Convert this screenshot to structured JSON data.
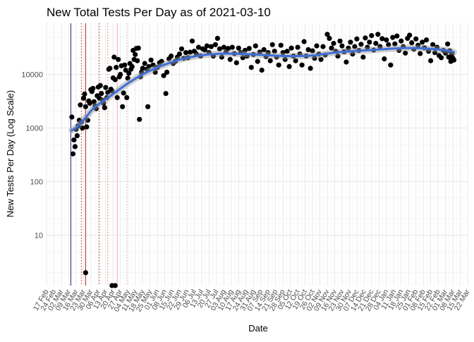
{
  "chart_data": {
    "type": "scatter",
    "title": "New Total Tests Per Day as of 2021-03-10",
    "xlabel": "Date",
    "ylabel": "New Tests Per Day (Log Scale)",
    "y_scale": "log10",
    "ylim": [
      1.15,
      90000
    ],
    "y_ticks": [
      10,
      100,
      1000,
      10000
    ],
    "y_tick_labels": [
      "10",
      "100",
      "1000",
      "10000"
    ],
    "x_start": "2020-02-17",
    "x_end": "2021-03-22",
    "x_ticks": [
      "2020-02-17",
      "2020-02-24",
      "2020-03-02",
      "2020-03-09",
      "2020-03-16",
      "2020-03-23",
      "2020-03-30",
      "2020-04-06",
      "2020-04-13",
      "2020-04-20",
      "2020-04-27",
      "2020-05-04",
      "2020-05-11",
      "2020-05-18",
      "2020-05-25",
      "2020-06-01",
      "2020-06-08",
      "2020-06-15",
      "2020-06-22",
      "2020-06-29",
      "2020-07-06",
      "2020-07-13",
      "2020-07-20",
      "2020-07-27",
      "2020-08-03",
      "2020-08-10",
      "2020-08-17",
      "2020-08-24",
      "2020-08-31",
      "2020-09-07",
      "2020-09-14",
      "2020-09-21",
      "2020-09-28",
      "2020-10-05",
      "2020-10-12",
      "2020-10-19",
      "2020-10-26",
      "2020-11-02",
      "2020-11-09",
      "2020-11-16",
      "2020-11-23",
      "2020-11-30",
      "2020-12-07",
      "2020-12-14",
      "2020-12-21",
      "2020-12-28",
      "2021-01-04",
      "2021-01-11",
      "2021-01-18",
      "2021-01-25",
      "2021-02-01",
      "2021-02-08",
      "2021-02-15",
      "2021-02-22",
      "2021-03-01",
      "2021-03-08",
      "2021-03-15",
      "2021-03-22"
    ],
    "x_tick_labels": [
      "17 Feb",
      "24 Feb",
      "02 Mar",
      "09 Mar",
      "16 Mar",
      "23 Mar",
      "30 Mar",
      "06 Apr",
      "13 Apr",
      "20 Apr",
      "27 Apr",
      "04 May",
      "11 May",
      "18 May",
      "25 May",
      "01 Jun",
      "08 Jun",
      "15 Jun",
      "22 Jun",
      "29 Jun",
      "06 Jul",
      "13 Jul",
      "20 Jul",
      "27 Jul",
      "03 Aug",
      "10 Aug",
      "17 Aug",
      "24 Aug",
      "31 Aug",
      "07 Sep",
      "14 Sep",
      "21 Sep",
      "28 Sep",
      "05 Oct",
      "12 Oct",
      "19 Oct",
      "26 Oct",
      "02 Nov",
      "09 Nov",
      "16 Nov",
      "23 Nov",
      "30 Nov",
      "07 Dec",
      "14 Dec",
      "21 Dec",
      "28 Dec",
      "04 Jan",
      "11 Jan",
      "18 Jan",
      "25 Jan",
      "01 Feb",
      "08 Feb",
      "15 Feb",
      "22 Feb",
      "01 Mar",
      "08 Mar",
      "15 Mar",
      "22 Mar"
    ],
    "grid": true,
    "vlines": [
      {
        "date": "2020-03-11",
        "color": "#1c1c7a",
        "style": "solid"
      },
      {
        "date": "2020-03-21",
        "color": "#b02020",
        "style": "dotted"
      },
      {
        "date": "2020-03-25",
        "color": "#b02020",
        "style": "solid"
      },
      {
        "date": "2020-04-07",
        "color": "#b02020",
        "style": "dotted"
      },
      {
        "date": "2020-04-15",
        "color": "#ff6666",
        "style": "dotted"
      },
      {
        "date": "2020-04-24",
        "color": "#ffb0b0",
        "style": "solid"
      },
      {
        "date": "2020-05-03",
        "color": "#bbbbbb",
        "style": "dotted"
      }
    ],
    "smooth_series": {
      "color": "#3d6fd6",
      "band_color": "#9a9a9a",
      "points": [
        {
          "x": "2020-03-12",
          "y": 900
        },
        {
          "x": "2020-03-19",
          "y": 1150
        },
        {
          "x": "2020-03-26",
          "y": 1650
        },
        {
          "x": "2020-04-02",
          "y": 2400
        },
        {
          "x": "2020-04-12",
          "y": 3300
        },
        {
          "x": "2020-04-22",
          "y": 4600
        },
        {
          "x": "2020-05-05",
          "y": 7000
        },
        {
          "x": "2020-05-20",
          "y": 10500
        },
        {
          "x": "2020-06-05",
          "y": 14500
        },
        {
          "x": "2020-06-25",
          "y": 19500
        },
        {
          "x": "2020-07-15",
          "y": 23000
        },
        {
          "x": "2020-08-05",
          "y": 24500
        },
        {
          "x": "2020-09-01",
          "y": 23500
        },
        {
          "x": "2020-10-01",
          "y": 22000
        },
        {
          "x": "2020-10-25",
          "y": 22500
        },
        {
          "x": "2020-11-20",
          "y": 26000
        },
        {
          "x": "2020-12-20",
          "y": 28500
        },
        {
          "x": "2021-01-20",
          "y": 31000
        },
        {
          "x": "2021-02-10",
          "y": 30500
        },
        {
          "x": "2021-02-28",
          "y": 28500
        },
        {
          "x": "2021-03-09",
          "y": 26000
        }
      ]
    },
    "points": [
      {
        "x": "2020-03-12",
        "y": 1600
      },
      {
        "x": "2020-03-13",
        "y": 330
      },
      {
        "x": "2020-03-14",
        "y": 600
      },
      {
        "x": "2020-03-15",
        "y": 450
      },
      {
        "x": "2020-03-16",
        "y": 950
      },
      {
        "x": "2020-03-17",
        "y": 720
      },
      {
        "x": "2020-03-18",
        "y": 1100
      },
      {
        "x": "2020-03-19",
        "y": 1400
      },
      {
        "x": "2020-03-20",
        "y": 2700
      },
      {
        "x": "2020-03-21",
        "y": 1300
      },
      {
        "x": "2020-03-22",
        "y": 1000
      },
      {
        "x": "2020-03-23",
        "y": 3600
      },
      {
        "x": "2020-03-24",
        "y": 4300
      },
      {
        "x": "2020-03-25",
        "y": 2500
      },
      {
        "x": "2020-03-26",
        "y": 1050
      },
      {
        "x": "2020-03-27",
        "y": 1400
      },
      {
        "x": "2020-03-28",
        "y": 3200
      },
      {
        "x": "2020-03-29",
        "y": 2900
      },
      {
        "x": "2020-03-30",
        "y": 5200
      },
      {
        "x": "2020-03-31",
        "y": 4800
      },
      {
        "x": "2020-04-01",
        "y": 5500
      },
      {
        "x": "2020-04-02",
        "y": 3100
      },
      {
        "x": "2020-04-03",
        "y": 2600
      },
      {
        "x": "2020-04-04",
        "y": 2300
      },
      {
        "x": "2020-04-05",
        "y": 4000
      },
      {
        "x": "2020-04-06",
        "y": 5800
      },
      {
        "x": "2020-04-07",
        "y": 3600
      },
      {
        "x": "2020-04-08",
        "y": 6200
      },
      {
        "x": "2020-04-09",
        "y": 4400
      },
      {
        "x": "2020-04-10",
        "y": 3300
      },
      {
        "x": "2020-04-11",
        "y": 2900
      },
      {
        "x": "2020-04-12",
        "y": 2400
      },
      {
        "x": "2020-04-13",
        "y": 5700
      },
      {
        "x": "2020-04-14",
        "y": 3700
      },
      {
        "x": "2020-04-15",
        "y": 4600
      },
      {
        "x": "2020-04-16",
        "y": 12500
      },
      {
        "x": "2020-04-17",
        "y": 13000
      },
      {
        "x": "2020-04-18",
        "y": 5300
      },
      {
        "x": "2020-04-19",
        "y": 4900
      },
      {
        "x": "2020-04-20",
        "y": 8600
      },
      {
        "x": "2020-04-21",
        "y": 21000
      },
      {
        "x": "2020-04-22",
        "y": 8000
      },
      {
        "x": "2020-04-23",
        "y": 13500
      },
      {
        "x": "2020-04-24",
        "y": 3700
      },
      {
        "x": "2020-04-25",
        "y": 19000
      },
      {
        "x": "2020-04-26",
        "y": 9000
      },
      {
        "x": "2020-04-27",
        "y": 10000
      },
      {
        "x": "2020-04-28",
        "y": 14500
      },
      {
        "x": "2020-04-29",
        "y": 2500
      },
      {
        "x": "2020-04-30",
        "y": 4500
      },
      {
        "x": "2020-05-01",
        "y": 15000
      },
      {
        "x": "2020-05-02",
        "y": 12000
      },
      {
        "x": "2020-05-03",
        "y": 3700
      },
      {
        "x": "2020-05-04",
        "y": 8500
      },
      {
        "x": "2020-05-05",
        "y": 10500
      },
      {
        "x": "2020-05-06",
        "y": 16000
      },
      {
        "x": "2020-05-07",
        "y": 12500
      },
      {
        "x": "2020-05-08",
        "y": 14000
      },
      {
        "x": "2020-05-09",
        "y": 28000
      },
      {
        "x": "2020-05-10",
        "y": 19000
      },
      {
        "x": "2020-05-11",
        "y": 23500
      },
      {
        "x": "2020-05-12",
        "y": 30500
      },
      {
        "x": "2020-05-13",
        "y": 18000
      },
      {
        "x": "2020-05-14",
        "y": 31000
      },
      {
        "x": "2020-05-15",
        "y": 1450
      },
      {
        "x": "2020-05-16",
        "y": 9000
      },
      {
        "x": "2020-05-17",
        "y": 11000
      },
      {
        "x": "2020-05-18",
        "y": 13000
      },
      {
        "x": "2020-05-20",
        "y": 16000
      },
      {
        "x": "2020-05-22",
        "y": 12500
      },
      {
        "x": "2020-05-23",
        "y": 2500
      },
      {
        "x": "2020-05-24",
        "y": 14000
      },
      {
        "x": "2020-05-26",
        "y": 18500
      },
      {
        "x": "2020-05-28",
        "y": 15000
      },
      {
        "x": "2020-05-30",
        "y": 11000
      },
      {
        "x": "2020-06-01",
        "y": 13500
      },
      {
        "x": "2020-06-03",
        "y": 16500
      },
      {
        "x": "2020-06-05",
        "y": 17500
      },
      {
        "x": "2020-06-07",
        "y": 9500
      },
      {
        "x": "2020-06-09",
        "y": 4400
      },
      {
        "x": "2020-06-10",
        "y": 11000
      },
      {
        "x": "2020-06-12",
        "y": 19500
      },
      {
        "x": "2020-06-14",
        "y": 22000
      },
      {
        "x": "2020-06-16",
        "y": 16000
      },
      {
        "x": "2020-06-18",
        "y": 17500
      },
      {
        "x": "2020-06-20",
        "y": 21000
      },
      {
        "x": "2020-06-22",
        "y": 24000
      },
      {
        "x": "2020-06-24",
        "y": 30000
      },
      {
        "x": "2020-06-26",
        "y": 20000
      },
      {
        "x": "2020-06-28",
        "y": 25500
      },
      {
        "x": "2020-06-30",
        "y": 20500
      },
      {
        "x": "2020-07-02",
        "y": 26000
      },
      {
        "x": "2020-07-04",
        "y": 42000
      },
      {
        "x": "2020-07-06",
        "y": 27000
      },
      {
        "x": "2020-07-08",
        "y": 24000
      },
      {
        "x": "2020-07-10",
        "y": 32000
      },
      {
        "x": "2020-07-12",
        "y": 22000
      },
      {
        "x": "2020-07-14",
        "y": 30000
      },
      {
        "x": "2020-07-16",
        "y": 28500
      },
      {
        "x": "2020-07-18",
        "y": 34000
      },
      {
        "x": "2020-07-20",
        "y": 25500
      },
      {
        "x": "2020-07-22",
        "y": 33000
      },
      {
        "x": "2020-07-24",
        "y": 22000
      },
      {
        "x": "2020-07-26",
        "y": 36000
      },
      {
        "x": "2020-07-28",
        "y": 47000
      },
      {
        "x": "2020-07-30",
        "y": 30000
      },
      {
        "x": "2020-08-01",
        "y": 21000
      },
      {
        "x": "2020-08-03",
        "y": 32000
      },
      {
        "x": "2020-08-05",
        "y": 26000
      },
      {
        "x": "2020-08-07",
        "y": 30500
      },
      {
        "x": "2020-08-09",
        "y": 19000
      },
      {
        "x": "2020-08-11",
        "y": 32000
      },
      {
        "x": "2020-08-13",
        "y": 24500
      },
      {
        "x": "2020-08-15",
        "y": 16500
      },
      {
        "x": "2020-08-17",
        "y": 31000
      },
      {
        "x": "2020-08-19",
        "y": 25500
      },
      {
        "x": "2020-08-21",
        "y": 20500
      },
      {
        "x": "2020-08-23",
        "y": 28000
      },
      {
        "x": "2020-08-25",
        "y": 22000
      },
      {
        "x": "2020-08-27",
        "y": 30500
      },
      {
        "x": "2020-08-29",
        "y": 13500
      },
      {
        "x": "2020-08-31",
        "y": 23500
      },
      {
        "x": "2020-09-02",
        "y": 34000
      },
      {
        "x": "2020-09-04",
        "y": 17500
      },
      {
        "x": "2020-09-06",
        "y": 26000
      },
      {
        "x": "2020-09-08",
        "y": 12000
      },
      {
        "x": "2020-09-10",
        "y": 29000
      },
      {
        "x": "2020-09-12",
        "y": 21500
      },
      {
        "x": "2020-09-14",
        "y": 25500
      },
      {
        "x": "2020-09-16",
        "y": 18000
      },
      {
        "x": "2020-09-18",
        "y": 36000
      },
      {
        "x": "2020-09-20",
        "y": 27000
      },
      {
        "x": "2020-09-22",
        "y": 21000
      },
      {
        "x": "2020-09-24",
        "y": 15000
      },
      {
        "x": "2020-09-26",
        "y": 35000
      },
      {
        "x": "2020-09-28",
        "y": 25500
      },
      {
        "x": "2020-09-30",
        "y": 19000
      },
      {
        "x": "2020-10-02",
        "y": 27000
      },
      {
        "x": "2020-10-04",
        "y": 14000
      },
      {
        "x": "2020-10-06",
        "y": 31000
      },
      {
        "x": "2020-10-08",
        "y": 22000
      },
      {
        "x": "2020-10-10",
        "y": 18000
      },
      {
        "x": "2020-10-12",
        "y": 32000
      },
      {
        "x": "2020-10-14",
        "y": 24000
      },
      {
        "x": "2020-10-16",
        "y": 15000
      },
      {
        "x": "2020-10-18",
        "y": 41000
      },
      {
        "x": "2020-10-20",
        "y": 22000
      },
      {
        "x": "2020-10-22",
        "y": 29000
      },
      {
        "x": "2020-10-24",
        "y": 13000
      },
      {
        "x": "2020-10-26",
        "y": 27500
      },
      {
        "x": "2020-10-28",
        "y": 20000
      },
      {
        "x": "2020-10-30",
        "y": 34000
      },
      {
        "x": "2020-11-01",
        "y": 24000
      },
      {
        "x": "2020-11-03",
        "y": 19000
      },
      {
        "x": "2020-11-05",
        "y": 33000
      },
      {
        "x": "2020-11-07",
        "y": 23000
      },
      {
        "x": "2020-11-09",
        "y": 56000
      },
      {
        "x": "2020-11-11",
        "y": 47000
      },
      {
        "x": "2020-11-13",
        "y": 31000
      },
      {
        "x": "2020-11-15",
        "y": 38000
      },
      {
        "x": "2020-11-17",
        "y": 27000
      },
      {
        "x": "2020-11-19",
        "y": 22000
      },
      {
        "x": "2020-11-21",
        "y": 42000
      },
      {
        "x": "2020-11-23",
        "y": 34000
      },
      {
        "x": "2020-11-25",
        "y": 26500
      },
      {
        "x": "2020-11-27",
        "y": 17000
      },
      {
        "x": "2020-11-29",
        "y": 31000
      },
      {
        "x": "2020-12-01",
        "y": 40000
      },
      {
        "x": "2020-12-03",
        "y": 24000
      },
      {
        "x": "2020-12-05",
        "y": 33000
      },
      {
        "x": "2020-12-07",
        "y": 46000
      },
      {
        "x": "2020-12-09",
        "y": 28000
      },
      {
        "x": "2020-12-11",
        "y": 36500
      },
      {
        "x": "2020-12-13",
        "y": 21000
      },
      {
        "x": "2020-12-15",
        "y": 48000
      },
      {
        "x": "2020-12-17",
        "y": 32000
      },
      {
        "x": "2020-12-19",
        "y": 40000
      },
      {
        "x": "2020-12-21",
        "y": 53000
      },
      {
        "x": "2020-12-23",
        "y": 28500
      },
      {
        "x": "2020-12-25",
        "y": 38000
      },
      {
        "x": "2020-12-27",
        "y": 56000
      },
      {
        "x": "2020-12-29",
        "y": 33000
      },
      {
        "x": "2020-12-31",
        "y": 46500
      },
      {
        "x": "2021-01-02",
        "y": 19500
      },
      {
        "x": "2021-01-04",
        "y": 44000
      },
      {
        "x": "2021-01-06",
        "y": 36000
      },
      {
        "x": "2021-01-08",
        "y": 15000
      },
      {
        "x": "2021-01-10",
        "y": 49000
      },
      {
        "x": "2021-01-12",
        "y": 37000
      },
      {
        "x": "2021-01-14",
        "y": 52000
      },
      {
        "x": "2021-01-16",
        "y": 28000
      },
      {
        "x": "2021-01-18",
        "y": 42000
      },
      {
        "x": "2021-01-20",
        "y": 33000
      },
      {
        "x": "2021-01-22",
        "y": 25000
      },
      {
        "x": "2021-01-24",
        "y": 47000
      },
      {
        "x": "2021-01-26",
        "y": 54000
      },
      {
        "x": "2021-01-28",
        "y": 39000
      },
      {
        "x": "2021-01-30",
        "y": 29500
      },
      {
        "x": "2021-02-01",
        "y": 46000
      },
      {
        "x": "2021-02-03",
        "y": 35000
      },
      {
        "x": "2021-02-05",
        "y": 24500
      },
      {
        "x": "2021-02-07",
        "y": 40000
      },
      {
        "x": "2021-02-09",
        "y": 31500
      },
      {
        "x": "2021-02-11",
        "y": 44000
      },
      {
        "x": "2021-02-13",
        "y": 27000
      },
      {
        "x": "2021-02-15",
        "y": 18000
      },
      {
        "x": "2021-02-17",
        "y": 36000
      },
      {
        "x": "2021-02-19",
        "y": 25500
      },
      {
        "x": "2021-02-21",
        "y": 32000
      },
      {
        "x": "2021-02-23",
        "y": 22500
      },
      {
        "x": "2021-02-25",
        "y": 20500
      },
      {
        "x": "2021-02-27",
        "y": 28000
      },
      {
        "x": "2021-03-01",
        "y": 25000
      },
      {
        "x": "2021-03-03",
        "y": 37000
      },
      {
        "x": "2021-03-04",
        "y": 21000
      },
      {
        "x": "2021-03-05",
        "y": 27500
      },
      {
        "x": "2021-03-06",
        "y": 17500
      },
      {
        "x": "2021-03-07",
        "y": 23500
      },
      {
        "x": "2021-03-08",
        "y": 20000
      },
      {
        "x": "2021-03-09",
        "y": 18500
      },
      {
        "x": "2020-03-25",
        "y": 2
      },
      {
        "x": "2020-04-19",
        "y": 1.15
      },
      {
        "x": "2020-04-22",
        "y": 1.15
      }
    ]
  }
}
